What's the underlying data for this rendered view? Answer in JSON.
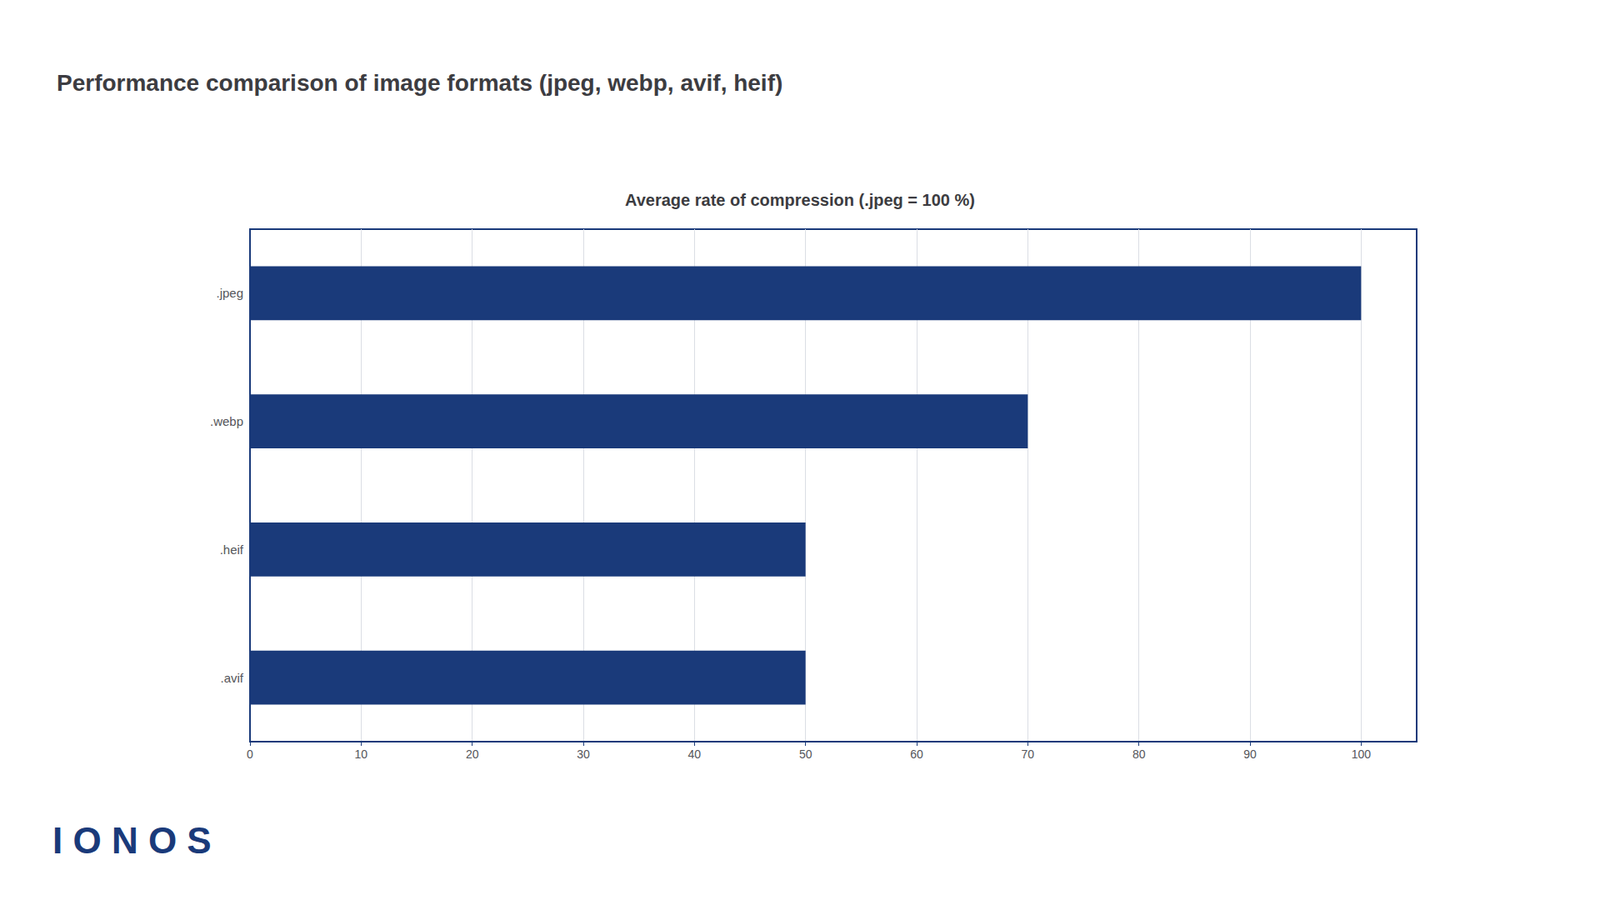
{
  "chart_data": {
    "type": "bar",
    "orientation": "horizontal",
    "title": "Performance comparison of image formats (jpeg, webp, avif, heif)",
    "subtitle": "Average rate of compression (.jpeg = 100 %)",
    "annotations": [
      "I O N O S"
    ],
    "categories": [
      ".jpeg",
      ".webp",
      ".heif",
      ".avif"
    ],
    "values": [
      100,
      70,
      50,
      50
    ],
    "color": "#1a3a7a",
    "xlim": [
      0,
      105
    ],
    "xticks": [
      0,
      10,
      20,
      30,
      40,
      50,
      60,
      70,
      80,
      90,
      100
    ],
    "grid": true
  }
}
